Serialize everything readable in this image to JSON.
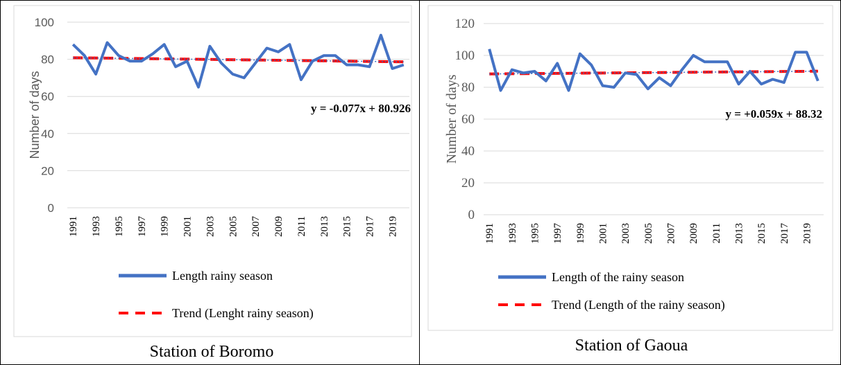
{
  "panels": [
    {
      "caption": "Station of Boromo",
      "chart_data": {
        "type": "line",
        "title": "",
        "xlabel": "",
        "ylabel": "Number of days",
        "ylim": [
          0,
          100
        ],
        "yticks": [
          0,
          20,
          40,
          60,
          80,
          100
        ],
        "x": [
          1991,
          1992,
          1993,
          1994,
          1995,
          1996,
          1997,
          1998,
          1999,
          2000,
          2001,
          2002,
          2003,
          2004,
          2005,
          2006,
          2007,
          2008,
          2009,
          2010,
          2011,
          2012,
          2013,
          2014,
          2015,
          2016,
          2017,
          2018,
          2019,
          2020
        ],
        "xtick_labels": [
          "1991",
          "1993",
          "1995",
          "1997",
          "1999",
          "2001",
          "2003",
          "2005",
          "2007",
          "2009",
          "2011",
          "2013",
          "2015",
          "2017",
          "2019"
        ],
        "series": [
          {
            "name": "Length  rainy season",
            "values": [
              88,
              82,
              72,
              89,
              82,
              79,
              79,
              83,
              88,
              76,
              79,
              65,
              87,
              78,
              72,
              70,
              78,
              86,
              84,
              88,
              69,
              79,
              82,
              82,
              77,
              77,
              76,
              93,
              75,
              77
            ]
          },
          {
            "name": "Trend (Lenght rainy season)",
            "intercept": 80.926,
            "slope": -0.077
          }
        ],
        "equation": "y = -0.077x + 80.926",
        "grid": true,
        "legend_position": "bottom"
      }
    },
    {
      "caption": "Station of Gaoua",
      "chart_data": {
        "type": "line",
        "title": "",
        "xlabel": "",
        "ylabel": "Number of days",
        "ylim": [
          0,
          120
        ],
        "yticks": [
          0,
          20,
          40,
          60,
          80,
          100,
          120
        ],
        "x": [
          1991,
          1992,
          1993,
          1994,
          1995,
          1996,
          1997,
          1998,
          1999,
          2000,
          2001,
          2002,
          2003,
          2004,
          2005,
          2006,
          2007,
          2008,
          2009,
          2010,
          2011,
          2012,
          2013,
          2014,
          2015,
          2016,
          2017,
          2018,
          2019,
          2020
        ],
        "xtick_labels": [
          "1991",
          "1993",
          "1995",
          "1997",
          "1999",
          "2001",
          "2003",
          "2005",
          "2007",
          "2009",
          "2011",
          "2013",
          "2015",
          "2017",
          "2019"
        ],
        "series": [
          {
            "name": "Length of the rainy season",
            "values": [
              104,
              78,
              91,
              89,
              90,
              84,
              95,
              78,
              101,
              94,
              81,
              80,
              89,
              88,
              79,
              86,
              81,
              91,
              100,
              96,
              96,
              96,
              82,
              90,
              82,
              85,
              83,
              102,
              102,
              84
            ]
          },
          {
            "name": "Trend (Length of the rainy season)",
            "intercept": 88.32,
            "slope": 0.059
          }
        ],
        "equation": "y = +0.059x + 88.32",
        "grid": true,
        "legend_position": "bottom"
      }
    }
  ],
  "colors": {
    "series": "#4472C4",
    "trend": "#FF0000",
    "grid": "#D9D9D9",
    "axis_text": "#595959"
  }
}
